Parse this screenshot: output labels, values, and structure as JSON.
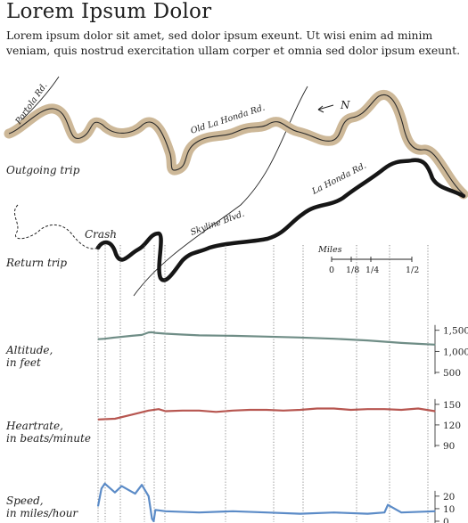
{
  "header": {
    "title": "Lorem Ipsum Dolor",
    "subtitle": "Lorem ipsum dolor sit amet, sed dolor ipsum exeunt. Ut wisi enim ad minim veniam, quis nostrud exercitation ullam corper et omnia sed dolor ipsum exeunt."
  },
  "map": {
    "roads": [
      "Portola Rd.",
      "Old La Honda Rd.",
      "Skyline Blvd.",
      "La Honda Rd."
    ],
    "north_label": "N",
    "crash_label": "Crash",
    "outgoing_label": "Outgoing trip",
    "return_label": "Return trip",
    "scale": {
      "title": "Miles",
      "ticks": [
        "0",
        "1/8",
        "1/4",
        "1/2"
      ]
    },
    "colors": {
      "outgoing_halo": "#cdb898",
      "return_path": "#161616"
    }
  },
  "chart_data": [
    {
      "type": "line",
      "ylabel": "Altitude,\nin feet",
      "ylim": [
        500,
        1600
      ],
      "yticks": [
        500,
        1000,
        1500
      ],
      "ytick_labels": [
        "500",
        "1,000",
        "1,500"
      ],
      "color": "#6f8d86",
      "series": [
        {
          "x": [
            0,
            0.02,
            0.05,
            0.1,
            0.13,
            0.15,
            0.16,
            0.17,
            0.2,
            0.25,
            0.3,
            0.4,
            0.5,
            0.6,
            0.7,
            0.8,
            0.9,
            0.95,
            1.0
          ],
          "values": [
            1290,
            1300,
            1330,
            1370,
            1390,
            1450,
            1455,
            1440,
            1420,
            1400,
            1380,
            1370,
            1350,
            1330,
            1300,
            1260,
            1200,
            1180,
            1160
          ]
        }
      ]
    },
    {
      "type": "line",
      "ylabel": "Heartrate,\nin beats/minute",
      "ylim": [
        90,
        155
      ],
      "yticks": [
        90,
        120,
        150
      ],
      "ytick_labels": [
        "90",
        "120",
        "150"
      ],
      "color": "#b75650",
      "series": [
        {
          "x": [
            0,
            0.05,
            0.1,
            0.15,
            0.18,
            0.2,
            0.25,
            0.3,
            0.35,
            0.4,
            0.45,
            0.5,
            0.55,
            0.6,
            0.65,
            0.7,
            0.75,
            0.8,
            0.85,
            0.9,
            0.95,
            1.0
          ],
          "values": [
            128,
            129,
            135,
            141,
            143,
            140,
            141,
            141,
            139,
            141,
            142,
            142,
            141,
            142,
            144,
            144,
            142,
            143,
            143,
            142,
            144,
            140
          ]
        }
      ]
    },
    {
      "type": "line",
      "ylabel": "Speed,\nin miles/hour",
      "ylim": [
        0,
        32
      ],
      "yticks": [
        0,
        10,
        20
      ],
      "ytick_labels": [
        "0",
        "10",
        "20"
      ],
      "color": "#5b8bc7",
      "series": [
        {
          "x": [
            0,
            0.01,
            0.02,
            0.05,
            0.07,
            0.09,
            0.11,
            0.13,
            0.15,
            0.16,
            0.165,
            0.17,
            0.2,
            0.3,
            0.4,
            0.5,
            0.6,
            0.7,
            0.8,
            0.85,
            0.86,
            0.9,
            1.0
          ],
          "values": [
            12,
            26,
            30,
            23,
            28,
            25,
            22,
            29,
            20,
            2,
            0,
            9,
            8,
            7,
            8,
            7,
            6,
            7,
            6,
            7,
            13,
            7,
            8
          ]
        }
      ]
    }
  ]
}
